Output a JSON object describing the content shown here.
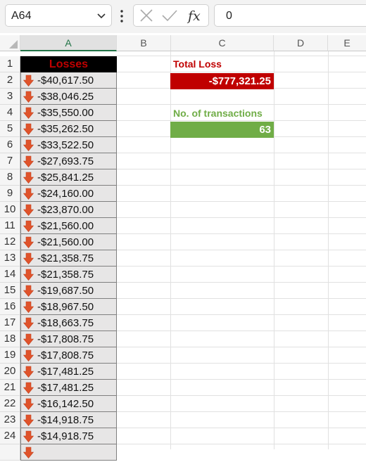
{
  "formula_bar": {
    "name_box": "A64",
    "formula_value": "0",
    "icons": [
      "chevron-down-icon",
      "more-options-icon",
      "cancel-icon",
      "enter-icon",
      "insert-function-icon"
    ]
  },
  "columns": [
    "A",
    "B",
    "C",
    "D",
    "E"
  ],
  "row_numbers": [
    "1",
    "2",
    "3",
    "4",
    "5",
    "6",
    "7",
    "8",
    "9",
    "10",
    "11",
    "12",
    "13",
    "14",
    "15",
    "16",
    "17",
    "18",
    "19",
    "20",
    "21",
    "22",
    "23",
    "24"
  ],
  "losses_header": "Losses",
  "losses": [
    "-$40,617.50",
    "-$38,046.25",
    "-$35,550.00",
    "-$35,262.50",
    "-$33,522.50",
    "-$27,693.75",
    "-$25,841.25",
    "-$24,160.00",
    "-$23,870.00",
    "-$21,560.00",
    "-$21,560.00",
    "-$21,358.75",
    "-$21,358.75",
    "-$19,687.50",
    "-$18,967.50",
    "-$18,663.75",
    "-$17,808.75",
    "-$17,808.75",
    "-$17,481.25",
    "-$17,481.25",
    "-$16,142.50",
    "-$14,918.75",
    "-$14,918.75"
  ],
  "summary": {
    "total_loss_label": "Total Loss",
    "total_loss_value": "-$777,321.25",
    "transactions_label": "No. of transactions",
    "transactions_value": "63"
  },
  "colors": {
    "losses_header_bg": "#000000",
    "losses_header_text": "#c00000",
    "total_loss_label": "#c00000",
    "total_loss_bg": "#c00000",
    "transactions_label": "#70ad47",
    "transactions_bg": "#70ad47",
    "arrow_icon": "#e0532b"
  }
}
